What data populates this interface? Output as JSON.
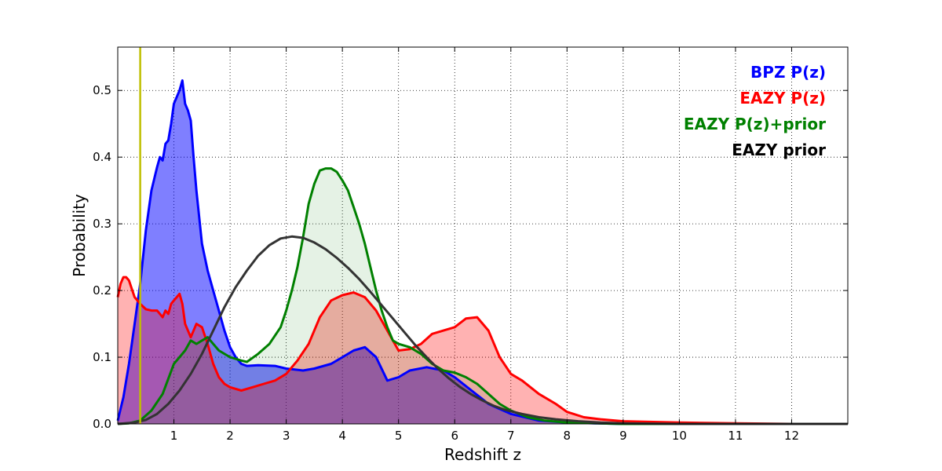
{
  "chart_data": {
    "type": "area",
    "xlabel": "Redshift z",
    "ylabel": "Probability",
    "xlim": [
      0,
      13
    ],
    "ylim": [
      0,
      0.565
    ],
    "xticks": [
      1,
      2,
      3,
      4,
      5,
      6,
      7,
      8,
      9,
      10,
      11,
      12
    ],
    "yticks": [
      0.0,
      0.1,
      0.2,
      0.3,
      0.4,
      0.5
    ],
    "ytick_labels": [
      "0.0",
      "0.1",
      "0.2",
      "0.3",
      "0.4",
      "0.5"
    ],
    "grid": true,
    "legend_position": "top-right",
    "vertical_line": {
      "x": 0.4,
      "color": "#bfbf00"
    },
    "series": [
      {
        "name": "BPZ P(z)",
        "color": "#0000ff",
        "fill": "#0000ff",
        "fill_opacity": 0.5,
        "x": [
          0,
          0.1,
          0.2,
          0.3,
          0.4,
          0.5,
          0.6,
          0.7,
          0.75,
          0.8,
          0.85,
          0.9,
          0.95,
          1.0,
          1.05,
          1.1,
          1.15,
          1.2,
          1.25,
          1.3,
          1.35,
          1.4,
          1.5,
          1.6,
          1.7,
          1.8,
          1.9,
          2.0,
          2.1,
          2.2,
          2.3,
          2.5,
          2.8,
          3.0,
          3.3,
          3.5,
          3.8,
          4.0,
          4.2,
          4.4,
          4.6,
          4.8,
          5.0,
          5.2,
          5.5,
          5.8,
          6.0,
          6.3,
          6.6,
          7.0,
          7.5,
          8.0,
          8.5,
          9.0,
          10.0,
          11.0,
          12.0,
          13.0
        ],
        "values": [
          0.005,
          0.04,
          0.09,
          0.15,
          0.21,
          0.29,
          0.35,
          0.385,
          0.4,
          0.395,
          0.42,
          0.425,
          0.45,
          0.48,
          0.49,
          0.5,
          0.515,
          0.48,
          0.47,
          0.455,
          0.4,
          0.35,
          0.27,
          0.23,
          0.2,
          0.17,
          0.14,
          0.115,
          0.1,
          0.09,
          0.087,
          0.088,
          0.087,
          0.083,
          0.08,
          0.083,
          0.09,
          0.1,
          0.11,
          0.115,
          0.1,
          0.065,
          0.07,
          0.08,
          0.085,
          0.08,
          0.07,
          0.05,
          0.03,
          0.015,
          0.005,
          0.002,
          0.001,
          0.0,
          0.0,
          0.0,
          0.0,
          0.0
        ]
      },
      {
        "name": "EAZY P(z)",
        "color": "#ff0000",
        "fill": "#ff0000",
        "fill_opacity": 0.3,
        "x": [
          0,
          0.05,
          0.1,
          0.15,
          0.2,
          0.3,
          0.4,
          0.5,
          0.6,
          0.7,
          0.8,
          0.85,
          0.9,
          0.95,
          1.0,
          1.05,
          1.1,
          1.15,
          1.2,
          1.3,
          1.4,
          1.5,
          1.6,
          1.7,
          1.8,
          1.9,
          2.0,
          2.2,
          2.4,
          2.6,
          2.8,
          3.0,
          3.2,
          3.4,
          3.6,
          3.8,
          4.0,
          4.2,
          4.4,
          4.6,
          4.8,
          5.0,
          5.2,
          5.4,
          5.6,
          5.8,
          6.0,
          6.2,
          6.4,
          6.6,
          6.8,
          7.0,
          7.2,
          7.5,
          7.8,
          8.0,
          8.3,
          8.6,
          9.0,
          10.0,
          11.0,
          12.0,
          13.0
        ],
        "values": [
          0.19,
          0.21,
          0.22,
          0.22,
          0.215,
          0.19,
          0.18,
          0.172,
          0.17,
          0.17,
          0.16,
          0.17,
          0.165,
          0.18,
          0.185,
          0.19,
          0.195,
          0.18,
          0.15,
          0.13,
          0.15,
          0.145,
          0.12,
          0.09,
          0.07,
          0.06,
          0.055,
          0.05,
          0.055,
          0.06,
          0.065,
          0.075,
          0.095,
          0.12,
          0.16,
          0.185,
          0.193,
          0.197,
          0.19,
          0.17,
          0.14,
          0.11,
          0.112,
          0.12,
          0.135,
          0.14,
          0.145,
          0.158,
          0.16,
          0.14,
          0.1,
          0.075,
          0.065,
          0.045,
          0.03,
          0.018,
          0.01,
          0.007,
          0.004,
          0.002,
          0.001,
          0.0,
          0.0
        ]
      },
      {
        "name": "EAZY P(z)+prior",
        "color": "#008000",
        "fill": "#008000",
        "fill_opacity": 0.1,
        "x": [
          0,
          0.2,
          0.4,
          0.6,
          0.8,
          1.0,
          1.1,
          1.2,
          1.3,
          1.4,
          1.5,
          1.6,
          1.7,
          1.8,
          2.0,
          2.2,
          2.3,
          2.5,
          2.7,
          2.9,
          3.0,
          3.1,
          3.2,
          3.3,
          3.4,
          3.5,
          3.6,
          3.7,
          3.8,
          3.9,
          4.0,
          4.1,
          4.2,
          4.3,
          4.4,
          4.5,
          4.6,
          4.7,
          4.8,
          4.9,
          5.0,
          5.2,
          5.4,
          5.6,
          5.8,
          6.0,
          6.2,
          6.4,
          6.6,
          6.8,
          7.0,
          7.3,
          7.6,
          8.0,
          9.0,
          10.0,
          11.0,
          12.0,
          13.0
        ],
        "values": [
          0.0,
          0.001,
          0.005,
          0.02,
          0.045,
          0.09,
          0.1,
          0.11,
          0.125,
          0.12,
          0.125,
          0.13,
          0.12,
          0.11,
          0.1,
          0.095,
          0.093,
          0.105,
          0.12,
          0.145,
          0.17,
          0.2,
          0.235,
          0.28,
          0.33,
          0.36,
          0.38,
          0.383,
          0.383,
          0.378,
          0.365,
          0.35,
          0.325,
          0.3,
          0.27,
          0.235,
          0.2,
          0.17,
          0.145,
          0.125,
          0.12,
          0.115,
          0.105,
          0.09,
          0.08,
          0.077,
          0.07,
          0.06,
          0.045,
          0.03,
          0.02,
          0.01,
          0.005,
          0.002,
          0.0,
          0.0,
          0.0,
          0.0,
          0.0
        ]
      },
      {
        "name": "EAZY prior",
        "color": "#333333",
        "fill": null,
        "fill_opacity": 0,
        "x": [
          0,
          0.3,
          0.5,
          0.7,
          0.9,
          1.1,
          1.3,
          1.5,
          1.7,
          1.9,
          2.1,
          2.3,
          2.5,
          2.7,
          2.9,
          3.1,
          3.3,
          3.5,
          3.7,
          3.9,
          4.1,
          4.3,
          4.5,
          4.7,
          4.9,
          5.1,
          5.3,
          5.5,
          5.7,
          5.9,
          6.1,
          6.3,
          6.5,
          6.7,
          6.9,
          7.2,
          7.5,
          7.8,
          8.2,
          8.6,
          9.0,
          10.0,
          11.0,
          12.0,
          13.0
        ],
        "values": [
          0.0,
          0.002,
          0.006,
          0.015,
          0.03,
          0.05,
          0.075,
          0.105,
          0.14,
          0.175,
          0.205,
          0.23,
          0.252,
          0.268,
          0.278,
          0.281,
          0.279,
          0.272,
          0.262,
          0.249,
          0.234,
          0.217,
          0.198,
          0.178,
          0.158,
          0.138,
          0.118,
          0.1,
          0.083,
          0.068,
          0.055,
          0.044,
          0.035,
          0.027,
          0.021,
          0.015,
          0.01,
          0.007,
          0.004,
          0.002,
          0.001,
          0.0,
          0.0,
          0.0,
          0.0
        ]
      }
    ]
  }
}
